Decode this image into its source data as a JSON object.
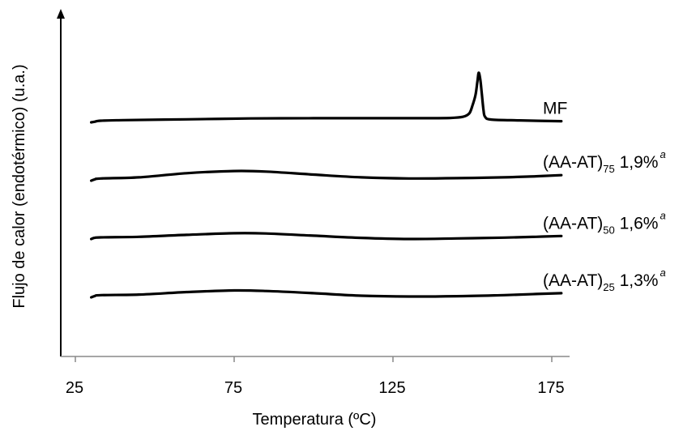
{
  "chart_data": {
    "type": "line",
    "title": "",
    "xlabel": "Temperatura (ºC)",
    "ylabel": "Flujo de calor (endotérmico) (u.a.)",
    "xlim": [
      25,
      185
    ],
    "xticks": [
      "25",
      "75",
      "125",
      "175"
    ],
    "yticks": [],
    "grid": false,
    "legend": "none",
    "series": [
      {
        "name": "MF",
        "label": {
          "main": "MF",
          "sub": "",
          "value": "",
          "sup": ""
        },
        "offset": 0,
        "points": [
          [
            30,
            0
          ],
          [
            31,
            0.02
          ],
          [
            33,
            0.06
          ],
          [
            40,
            0.08
          ],
          [
            60,
            0.11
          ],
          [
            80,
            0.14
          ],
          [
            100,
            0.15
          ],
          [
            120,
            0.15
          ],
          [
            135,
            0.15
          ],
          [
            143,
            0.16
          ],
          [
            147,
            0.2
          ],
          [
            149,
            0.32
          ],
          [
            150,
            0.6
          ],
          [
            151,
            1.0
          ],
          [
            151.6,
            1.5
          ],
          [
            152,
            1.8
          ],
          [
            152.5,
            1.55
          ],
          [
            153,
            1.0
          ],
          [
            153.5,
            0.45
          ],
          [
            154,
            0.2
          ],
          [
            156,
            0.1
          ],
          [
            165,
            0.07
          ],
          [
            178,
            0.04
          ]
        ]
      },
      {
        "name": "(AA-AT)75 1,9%",
        "label": {
          "main": "(AA-AT)",
          "sub": "75",
          "value": " 1,9%",
          "sup": "a"
        },
        "offset": -1,
        "points": [
          [
            30,
            0
          ],
          [
            31,
            0.04
          ],
          [
            33,
            0.08
          ],
          [
            45,
            0.12
          ],
          [
            60,
            0.27
          ],
          [
            75,
            0.35
          ],
          [
            85,
            0.33
          ],
          [
            100,
            0.22
          ],
          [
            115,
            0.12
          ],
          [
            130,
            0.08
          ],
          [
            145,
            0.09
          ],
          [
            160,
            0.12
          ],
          [
            170,
            0.16
          ],
          [
            178,
            0.2
          ]
        ]
      },
      {
        "name": "(AA-AT)50 1,6%",
        "label": {
          "main": "(AA-AT)",
          "sub": "50",
          "value": " 1,6%",
          "sup": "a"
        },
        "offset": -2,
        "points": [
          [
            30,
            0
          ],
          [
            31,
            0.04
          ],
          [
            33,
            0.06
          ],
          [
            45,
            0.08
          ],
          [
            60,
            0.15
          ],
          [
            75,
            0.21
          ],
          [
            85,
            0.2
          ],
          [
            100,
            0.12
          ],
          [
            115,
            0.04
          ],
          [
            130,
            0.0
          ],
          [
            145,
            0.02
          ],
          [
            160,
            0.05
          ],
          [
            170,
            0.08
          ],
          [
            178,
            0.11
          ]
        ]
      },
      {
        "name": "(AA-AT)25 1,3%",
        "label": {
          "main": "(AA-AT)",
          "sub": "25",
          "value": " 1,3%",
          "sup": "a"
        },
        "offset": -3,
        "points": [
          [
            30,
            0
          ],
          [
            31,
            0.04
          ],
          [
            33,
            0.08
          ],
          [
            45,
            0.1
          ],
          [
            60,
            0.19
          ],
          [
            75,
            0.25
          ],
          [
            85,
            0.23
          ],
          [
            100,
            0.15
          ],
          [
            115,
            0.06
          ],
          [
            130,
            0.03
          ],
          [
            145,
            0.04
          ],
          [
            160,
            0.08
          ],
          [
            170,
            0.12
          ],
          [
            178,
            0.15
          ]
        ]
      }
    ]
  }
}
